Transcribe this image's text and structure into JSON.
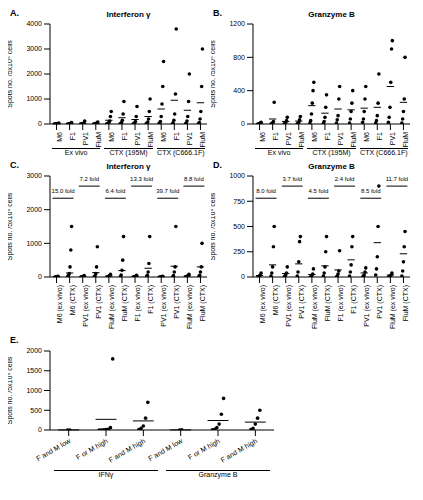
{
  "chart_data": [
    {
      "type": "scatter",
      "title": "Interferon γ",
      "annotations": [
        "A."
      ],
      "y_label": "Spots no. /5x10⁵ cells",
      "color": "#000000",
      "marker": "circle",
      "categories": [
        "M6",
        "F1",
        "PV1",
        "FluM",
        "M6",
        "F1",
        "PV1",
        "FluM",
        "M6",
        "F1",
        "PV1",
        "FluM"
      ],
      "values": [
        [
          0,
          0,
          2,
          5,
          10,
          20,
          40
        ],
        [
          0,
          0,
          5,
          10,
          30,
          60
        ],
        [
          0,
          2,
          5,
          15,
          40,
          120
        ],
        [
          0,
          5,
          10,
          20,
          50,
          80
        ],
        [
          0,
          10,
          30,
          60,
          120,
          300,
          500
        ],
        [
          0,
          20,
          60,
          150,
          400,
          900
        ],
        [
          0,
          10,
          40,
          100,
          300,
          700
        ],
        [
          5,
          30,
          80,
          200,
          500,
          1000
        ],
        [
          10,
          40,
          100,
          300,
          800,
          1500,
          2500
        ],
        [
          0,
          50,
          150,
          400,
          1200,
          3800
        ],
        [
          5,
          30,
          120,
          300,
          900,
          2000
        ],
        [
          10,
          60,
          200,
          500,
          1500,
          3000
        ]
      ],
      "means": [
        10,
        15,
        30,
        25,
        150,
        250,
        180,
        300,
        600,
        950,
        550,
        850
      ],
      "groups": [
        {
          "label": "Ex vivo",
          "from": 0,
          "to": 3
        },
        {
          "label": "CTX (195M)",
          "from": 4,
          "to": 7
        },
        {
          "label": "CTX (C666.1F)",
          "from": 8,
          "to": 11
        }
      ],
      "ylim": [
        0,
        4000
      ],
      "yticks": [
        0,
        1000,
        2000,
        3000,
        4000
      ]
    },
    {
      "type": "scatter",
      "title": "Granzyme B",
      "annotations": [
        "B."
      ],
      "y_label": "Spots no. /5x10⁵ cells",
      "color": "#000000",
      "marker": "circle",
      "categories": [
        "M6",
        "F1",
        "PV1",
        "FluM",
        "M6",
        "F1",
        "PV1",
        "FluM",
        "M6",
        "F1",
        "PV1",
        "FluM"
      ],
      "values": [
        [
          0,
          0,
          5,
          10,
          20
        ],
        [
          0,
          5,
          10,
          30,
          260
        ],
        [
          0,
          5,
          20,
          40,
          80
        ],
        [
          0,
          10,
          20,
          50,
          90
        ],
        [
          10,
          40,
          120,
          250,
          400,
          500
        ],
        [
          5,
          30,
          80,
          200,
          350
        ],
        [
          10,
          50,
          100,
          300,
          450
        ],
        [
          10,
          60,
          150,
          250,
          400
        ],
        [
          20,
          60,
          150,
          300,
          450
        ],
        [
          10,
          40,
          100,
          250,
          600
        ],
        [
          20,
          80,
          200,
          500,
          900,
          1000
        ],
        [
          10,
          60,
          150,
          300,
          800
        ]
      ],
      "means": [
        7,
        60,
        30,
        35,
        220,
        130,
        180,
        170,
        190,
        200,
        450,
        260
      ],
      "groups": [
        {
          "label": "Ex vivo",
          "from": 0,
          "to": 3
        },
        {
          "label": "CTX (195M)",
          "from": 4,
          "to": 7
        },
        {
          "label": "CTX (C666.1F)",
          "from": 8,
          "to": 11
        }
      ],
      "ylim": [
        0,
        1200
      ],
      "yticks": [
        0,
        400,
        800,
        1200
      ]
    },
    {
      "type": "scatter",
      "title": "Interferon γ",
      "annotations": [
        "C."
      ],
      "y_label": "Spots no. /5x10⁵ cells",
      "color": "#000000",
      "marker": "circle",
      "categories": [
        "M6 (ex vivo)",
        "M6 (CTX)",
        "PV1 (ex vivo)",
        "PV1 (CTX)",
        "FluM (ex vivo)",
        "FluM (CTX)",
        "F1 (ex vivo)",
        "F1 (CTX)",
        "PV1 (ex vivo)",
        "PV1 (CTX)",
        "FluM (ex vivo)",
        "FluM (CTX)"
      ],
      "values": [
        [
          0,
          2,
          5,
          10,
          20
        ],
        [
          10,
          40,
          100,
          300,
          800,
          1500
        ],
        [
          0,
          5,
          10,
          20,
          40
        ],
        [
          5,
          30,
          100,
          300,
          900
        ],
        [
          0,
          10,
          20,
          40,
          80
        ],
        [
          10,
          60,
          200,
          500,
          1200
        ],
        [
          0,
          5,
          10,
          20,
          50
        ],
        [
          10,
          50,
          150,
          400,
          1200
        ],
        [
          0,
          2,
          5,
          10,
          20
        ],
        [
          5,
          40,
          150,
          300,
          1500
        ],
        [
          0,
          10,
          20,
          40,
          80
        ],
        [
          10,
          50,
          150,
          300,
          1000
        ]
      ],
      "means": [
        8,
        120,
        18,
        130,
        30,
        190,
        20,
        260,
        8,
        320,
        35,
        300
      ],
      "folds": [
        {
          "text": "15.0 fold",
          "pair": [
            0,
            1
          ]
        },
        {
          "text": "7.2 fold",
          "pair": [
            2,
            3
          ]
        },
        {
          "text": "6.4 fold",
          "pair": [
            4,
            5
          ]
        },
        {
          "text": "13.3 fold",
          "pair": [
            6,
            7
          ]
        },
        {
          "text": "39.7 fold",
          "pair": [
            8,
            9
          ]
        },
        {
          "text": "8.8 fold",
          "pair": [
            10,
            11
          ]
        }
      ],
      "ylim": [
        0,
        3000
      ],
      "yticks": [
        0,
        1000,
        2000,
        3000
      ]
    },
    {
      "type": "scatter",
      "title": "Granzyme B",
      "annotations": [
        "D."
      ],
      "y_label": "Spots no. /5x10⁵ cells",
      "color": "#000000",
      "marker": "circle",
      "categories": [
        "M6 (ex vivo)",
        "M6 (CTX)",
        "PV1 (ex vivo)",
        "PV1 (CTX)",
        "FluM (ex vivo)",
        "FluM (CTX)",
        "F1 (ex vivo)",
        "F1 (CTX)",
        "PV1 (ex vivo)",
        "PV1 (CTX)",
        "FluM (ex vivo)",
        "FluM (CTX)"
      ],
      "values": [
        [
          0,
          5,
          10,
          20,
          40
        ],
        [
          10,
          40,
          100,
          300,
          500
        ],
        [
          0,
          10,
          20,
          40,
          100
        ],
        [
          10,
          50,
          150,
          350,
          400
        ],
        [
          0,
          5,
          15,
          30,
          80
        ],
        [
          10,
          40,
          100,
          250,
          400
        ],
        [
          0,
          10,
          30,
          60,
          260
        ],
        [
          10,
          50,
          120,
          300,
          400
        ],
        [
          0,
          10,
          20,
          50,
          90
        ],
        [
          20,
          80,
          200,
          500,
          900
        ],
        [
          0,
          5,
          10,
          20,
          40
        ],
        [
          10,
          60,
          150,
          300,
          450
        ]
      ],
      "means": [
        15,
        120,
        35,
        130,
        25,
        110,
        70,
        170,
        40,
        340,
        20,
        230
      ],
      "folds": [
        {
          "text": "8.0 fold",
          "pair": [
            0,
            1
          ]
        },
        {
          "text": "3.7 fold",
          "pair": [
            2,
            3
          ]
        },
        {
          "text": "4.5 fold",
          "pair": [
            4,
            5
          ]
        },
        {
          "text": "2.4 fold",
          "pair": [
            6,
            7
          ]
        },
        {
          "text": "8.5 fold",
          "pair": [
            8,
            9
          ]
        },
        {
          "text": "11.7 fold",
          "pair": [
            10,
            11
          ]
        }
      ],
      "ylim": [
        0,
        1000
      ],
      "yticks": [
        0,
        250,
        500,
        750,
        1000
      ]
    },
    {
      "type": "scatter",
      "annotations": [
        "E."
      ],
      "y_label": "Spots no. /5x10⁵ cells",
      "color": "#000000",
      "marker": "circle",
      "categories": [
        "F and M low",
        "F or M high",
        "F and M high",
        "F and M low",
        "F or M high",
        "F and M high"
      ],
      "values": [
        [
          0,
          0
        ],
        [
          0,
          0,
          5,
          10,
          20,
          60,
          1800
        ],
        [
          10,
          40,
          100,
          300,
          700
        ],
        [
          0,
          5
        ],
        [
          5,
          20,
          60,
          150,
          400,
          800
        ],
        [
          10,
          40,
          150,
          300,
          500
        ]
      ],
      "means": [
        2,
        270,
        230,
        3,
        240,
        200
      ],
      "groups": [
        {
          "label": "IFNγ",
          "from": 0,
          "to": 2
        },
        {
          "label": "Granzyme B",
          "from": 3,
          "to": 5
        }
      ],
      "ylim": [
        0,
        2000
      ],
      "yticks": [
        0,
        500,
        1000,
        1500,
        2000
      ]
    }
  ]
}
